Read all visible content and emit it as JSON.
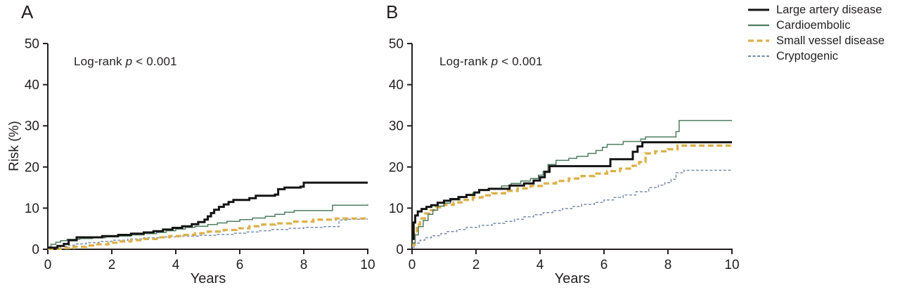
{
  "legend": {
    "items": [
      {
        "label": "Large artery disease",
        "color": "#141414",
        "width": 3.0,
        "dash": ""
      },
      {
        "label": "Cardioembolic",
        "color": "#4e7d60",
        "width": 1.5,
        "dash": ""
      },
      {
        "label": "Small vessel disease",
        "color": "#dcb14a",
        "width": 3.3,
        "dash": "8 4.5"
      },
      {
        "label": "Cryptogenic",
        "color": "#7b8fae",
        "width": 1.5,
        "dash": "4 2.5"
      }
    ]
  },
  "chart_data": {
    "type": "line",
    "subtype": "kaplan-meier-cumulative-risk-step",
    "xlabel": "Years",
    "ylabel": "Risk (%)",
    "xlim": [
      0,
      10
    ],
    "ylim": [
      0,
      50
    ],
    "x_ticks": [
      "0",
      "2",
      "4",
      "6",
      "8",
      "10"
    ],
    "y_ticks": [
      "0",
      "10",
      "20",
      "30",
      "40",
      "50"
    ],
    "grid": false,
    "legend_position": "top-right",
    "panels": [
      {
        "label": "A",
        "annotation": "Log-rank p < 0.001",
        "annotation_parts": {
          "prefix": "Log-rank ",
          "p_symbol": "p",
          "suffix": " < 0.001"
        },
        "series": [
          {
            "name": "Large artery disease",
            "points": [
              [
                0,
                0.4
              ],
              [
                0.3,
                0.8
              ],
              [
                0.5,
                1.3
              ],
              [
                0.65,
                2.2
              ],
              [
                0.9,
                2.9
              ],
              [
                1.7,
                3.2
              ],
              [
                2.2,
                3.5
              ],
              [
                2.6,
                3.8
              ],
              [
                3.0,
                4.1
              ],
              [
                3.3,
                4.4
              ],
              [
                3.6,
                4.8
              ],
              [
                3.9,
                5.2
              ],
              [
                4.2,
                5.6
              ],
              [
                4.5,
                6.1
              ],
              [
                4.7,
                6.6
              ],
              [
                4.9,
                7.2
              ],
              [
                5.0,
                8.0
              ],
              [
                5.1,
                8.8
              ],
              [
                5.2,
                9.6
              ],
              [
                5.35,
                10.3
              ],
              [
                5.5,
                10.9
              ],
              [
                5.65,
                11.5
              ],
              [
                5.8,
                12.0
              ],
              [
                6.3,
                12.4
              ],
              [
                6.5,
                13.0
              ],
              [
                7.1,
                13.3
              ],
              [
                7.2,
                14.6
              ],
              [
                7.4,
                15.0
              ],
              [
                7.9,
                15.2
              ],
              [
                8.0,
                16.2
              ],
              [
                10,
                16.2
              ]
            ]
          },
          {
            "name": "Cardioembolic",
            "points": [
              [
                0,
                0.6
              ],
              [
                0.1,
                1.2
              ],
              [
                0.25,
                1.7
              ],
              [
                0.4,
                2.1
              ],
              [
                0.6,
                2.4
              ],
              [
                1.0,
                2.6
              ],
              [
                1.4,
                2.8
              ],
              [
                1.8,
                3.0
              ],
              [
                2.2,
                3.2
              ],
              [
                2.6,
                3.5
              ],
              [
                3.0,
                3.8
              ],
              [
                3.4,
                4.1
              ],
              [
                3.7,
                4.5
              ],
              [
                4.0,
                4.9
              ],
              [
                4.3,
                5.3
              ],
              [
                4.6,
                5.6
              ],
              [
                5.0,
                6.0
              ],
              [
                5.3,
                6.4
              ],
              [
                5.6,
                6.8
              ],
              [
                6.0,
                7.2
              ],
              [
                6.4,
                7.6
              ],
              [
                6.8,
                8.0
              ],
              [
                7.1,
                8.5
              ],
              [
                7.4,
                9.0
              ],
              [
                7.7,
                9.4
              ],
              [
                8.9,
                10.7
              ],
              [
                10,
                10.9
              ]
            ]
          },
          {
            "name": "Small vessel disease",
            "points": [
              [
                0,
                0.1
              ],
              [
                0.4,
                0.3
              ],
              [
                0.8,
                0.6
              ],
              [
                1.2,
                0.9
              ],
              [
                1.5,
                1.2
              ],
              [
                1.9,
                1.6
              ],
              [
                2.2,
                1.9
              ],
              [
                2.6,
                2.2
              ],
              [
                3.0,
                2.5
              ],
              [
                3.4,
                2.9
              ],
              [
                3.8,
                3.2
              ],
              [
                4.2,
                3.5
              ],
              [
                4.6,
                3.9
              ],
              [
                5.0,
                4.3
              ],
              [
                5.5,
                4.7
              ],
              [
                5.9,
                5.1
              ],
              [
                6.3,
                5.6
              ],
              [
                6.7,
                6.0
              ],
              [
                7.1,
                6.3
              ],
              [
                7.6,
                6.7
              ],
              [
                8.3,
                7.2
              ],
              [
                9.0,
                7.5
              ],
              [
                10,
                7.7
              ]
            ]
          },
          {
            "name": "Cryptogenic",
            "points": [
              [
                0,
                0.3
              ],
              [
                0.3,
                0.7
              ],
              [
                0.6,
                1.0
              ],
              [
                0.9,
                1.3
              ],
              [
                1.2,
                1.6
              ],
              [
                1.6,
                1.9
              ],
              [
                2.0,
                2.2
              ],
              [
                2.5,
                2.5
              ],
              [
                3.0,
                2.8
              ],
              [
                3.6,
                3.0
              ],
              [
                4.1,
                3.2
              ],
              [
                4.7,
                3.4
              ],
              [
                5.3,
                3.6
              ],
              [
                5.8,
                3.9
              ],
              [
                6.2,
                4.2
              ],
              [
                6.6,
                4.5
              ],
              [
                7.0,
                4.8
              ],
              [
                7.5,
                5.1
              ],
              [
                8.0,
                5.3
              ],
              [
                8.6,
                5.5
              ],
              [
                9.1,
                7.1
              ],
              [
                9.4,
                7.3
              ],
              [
                10,
                7.3
              ]
            ]
          }
        ]
      },
      {
        "label": "B",
        "annotation": "Log-rank p < 0.001",
        "annotation_parts": {
          "prefix": "Log-rank ",
          "p_symbol": "p",
          "suffix": " < 0.001"
        },
        "series": [
          {
            "name": "Large artery disease",
            "points": [
              [
                0,
                2.5
              ],
              [
                0.05,
                6.5
              ],
              [
                0.1,
                8.2
              ],
              [
                0.18,
                9.2
              ],
              [
                0.3,
                9.8
              ],
              [
                0.45,
                10.3
              ],
              [
                0.6,
                10.7
              ],
              [
                0.8,
                11.3
              ],
              [
                1.0,
                11.8
              ],
              [
                1.2,
                12.2
              ],
              [
                1.45,
                12.7
              ],
              [
                1.7,
                13.2
              ],
              [
                1.95,
                13.8
              ],
              [
                2.1,
                14.4
              ],
              [
                2.4,
                14.7
              ],
              [
                3.05,
                15.5
              ],
              [
                3.5,
                16.0
              ],
              [
                3.8,
                16.7
              ],
              [
                4.0,
                17.5
              ],
              [
                4.15,
                18.8
              ],
              [
                4.3,
                20.2
              ],
              [
                6.2,
                21.9
              ],
              [
                6.9,
                23.7
              ],
              [
                7.05,
                25.0
              ],
              [
                7.2,
                26.0
              ],
              [
                10,
                26.0
              ]
            ]
          },
          {
            "name": "Cardioembolic",
            "points": [
              [
                0,
                1.5
              ],
              [
                0.1,
                3.5
              ],
              [
                0.2,
                5.5
              ],
              [
                0.35,
                7.0
              ],
              [
                0.5,
                8.5
              ],
              [
                0.65,
                9.5
              ],
              [
                0.8,
                10.5
              ],
              [
                1.0,
                11.2
              ],
              [
                1.2,
                12.0
              ],
              [
                1.5,
                12.6
              ],
              [
                1.7,
                13.1
              ],
              [
                1.9,
                13.7
              ],
              [
                2.1,
                14.3
              ],
              [
                2.4,
                14.8
              ],
              [
                2.8,
                15.4
              ],
              [
                3.1,
                16.0
              ],
              [
                3.4,
                16.6
              ],
              [
                3.7,
                17.2
              ],
              [
                3.95,
                18.0
              ],
              [
                4.1,
                19.0
              ],
              [
                4.25,
                20.6
              ],
              [
                4.5,
                21.6
              ],
              [
                4.9,
                22.1
              ],
              [
                5.15,
                22.6
              ],
              [
                5.5,
                23.3
              ],
              [
                5.75,
                24.0
              ],
              [
                5.95,
                24.8
              ],
              [
                6.1,
                25.5
              ],
              [
                6.6,
                26.2
              ],
              [
                7.15,
                26.8
              ],
              [
                7.3,
                27.3
              ],
              [
                8.25,
                28.6
              ],
              [
                8.35,
                31.3
              ],
              [
                10,
                31.3
              ]
            ]
          },
          {
            "name": "Small vessel disease",
            "points": [
              [
                0,
                1.0
              ],
              [
                0.07,
                4.0
              ],
              [
                0.15,
                6.0
              ],
              [
                0.25,
                7.5
              ],
              [
                0.4,
                8.7
              ],
              [
                0.55,
                9.5
              ],
              [
                0.75,
                10.2
              ],
              [
                1.0,
                10.8
              ],
              [
                1.3,
                11.4
              ],
              [
                1.6,
                12.0
              ],
              [
                1.9,
                12.6
              ],
              [
                2.2,
                13.1
              ],
              [
                2.5,
                13.6
              ],
              [
                2.9,
                14.2
              ],
              [
                3.3,
                14.8
              ],
              [
                3.7,
                15.4
              ],
              [
                4.1,
                16.0
              ],
              [
                4.5,
                16.6
              ],
              [
                4.9,
                17.2
              ],
              [
                5.3,
                17.8
              ],
              [
                5.7,
                18.4
              ],
              [
                6.1,
                19.0
              ],
              [
                6.5,
                19.6
              ],
              [
                6.9,
                20.3
              ],
              [
                7.1,
                21.2
              ],
              [
                7.3,
                23.3
              ],
              [
                7.6,
                23.8
              ],
              [
                8.0,
                24.3
              ],
              [
                8.3,
                25.2
              ],
              [
                10,
                25.2
              ]
            ]
          },
          {
            "name": "Cryptogenic",
            "points": [
              [
                0,
                0.5
              ],
              [
                0.1,
                1.5
              ],
              [
                0.25,
                2.2
              ],
              [
                0.4,
                2.8
              ],
              [
                0.6,
                3.3
              ],
              [
                0.9,
                3.8
              ],
              [
                1.1,
                4.3
              ],
              [
                1.4,
                4.8
              ],
              [
                1.7,
                5.3
              ],
              [
                2.1,
                5.8
              ],
              [
                2.5,
                6.3
              ],
              [
                2.9,
                6.8
              ],
              [
                3.2,
                7.3
              ],
              [
                3.5,
                7.9
              ],
              [
                3.8,
                8.4
              ],
              [
                4.1,
                8.9
              ],
              [
                4.4,
                9.4
              ],
              [
                4.7,
                9.9
              ],
              [
                5.0,
                10.4
              ],
              [
                5.3,
                10.9
              ],
              [
                5.7,
                11.4
              ],
              [
                6.0,
                12.0
              ],
              [
                6.3,
                12.6
              ],
              [
                6.6,
                13.2
              ],
              [
                7.0,
                14.0
              ],
              [
                7.4,
                15.0
              ],
              [
                7.7,
                15.6
              ],
              [
                7.9,
                16.2
              ],
              [
                8.1,
                17.0
              ],
              [
                8.25,
                18.6
              ],
              [
                8.5,
                19.2
              ],
              [
                10,
                19.2
              ]
            ]
          }
        ]
      }
    ]
  }
}
